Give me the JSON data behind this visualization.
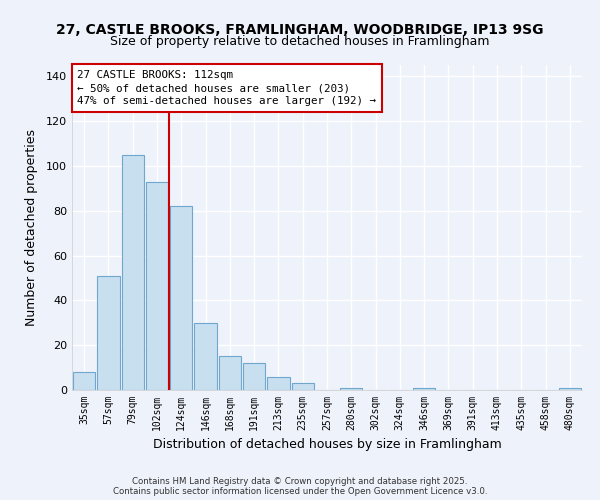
{
  "title1": "27, CASTLE BROOKS, FRAMLINGHAM, WOODBRIDGE, IP13 9SG",
  "title2": "Size of property relative to detached houses in Framlingham",
  "xlabel": "Distribution of detached houses by size in Framlingham",
  "ylabel": "Number of detached properties",
  "bar_color": "#c8dff0",
  "bar_edge_color": "#6fa8cc",
  "background_color": "#eef2fb",
  "grid_color": "#ffffff",
  "categories": [
    "35sqm",
    "57sqm",
    "79sqm",
    "102sqm",
    "124sqm",
    "146sqm",
    "168sqm",
    "191sqm",
    "213sqm",
    "235sqm",
    "257sqm",
    "280sqm",
    "302sqm",
    "324sqm",
    "346sqm",
    "369sqm",
    "391sqm",
    "413sqm",
    "435sqm",
    "458sqm",
    "480sqm"
  ],
  "values": [
    8,
    51,
    105,
    93,
    82,
    30,
    15,
    12,
    6,
    3,
    0,
    1,
    0,
    0,
    1,
    0,
    0,
    0,
    0,
    0,
    1
  ],
  "ylim": [
    0,
    145
  ],
  "yticks": [
    0,
    20,
    40,
    60,
    80,
    100,
    120,
    140
  ],
  "vline_x": 3.5,
  "vline_color": "#cc0000",
  "annotation_title": "27 CASTLE BROOKS: 112sqm",
  "annotation_line1": "← 50% of detached houses are smaller (203)",
  "annotation_line2": "47% of semi-detached houses are larger (192) →",
  "footer1": "Contains HM Land Registry data © Crown copyright and database right 2025.",
  "footer2": "Contains public sector information licensed under the Open Government Licence v3.0."
}
